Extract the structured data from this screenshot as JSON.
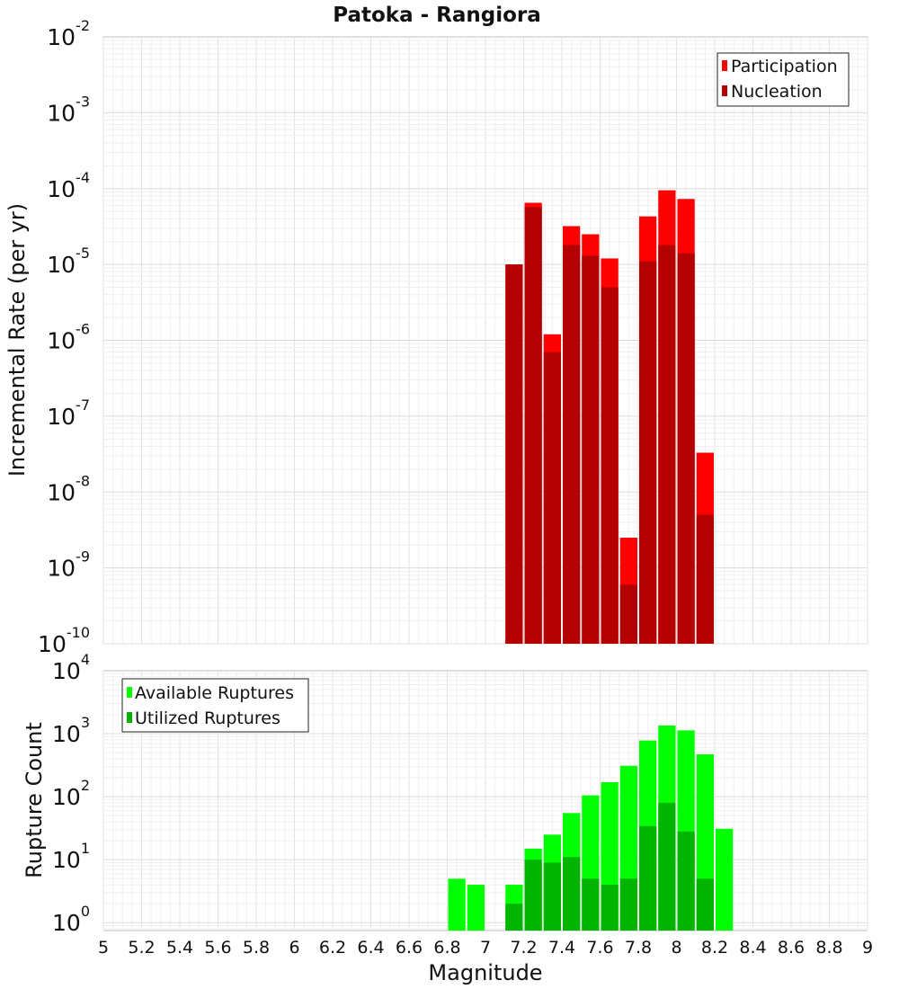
{
  "chart_data": [
    {
      "type": "bar",
      "title": "Patoka - Rangiora",
      "ylabel": "Incremental Rate (per yr)",
      "xlabel": "",
      "x_range": [
        5,
        9
      ],
      "y_scale": "log",
      "y_range": [
        1e-10,
        0.01
      ],
      "y_ticks": [
        {
          "base": "10",
          "exp": "-10"
        },
        {
          "base": "10",
          "exp": "-9"
        },
        {
          "base": "10",
          "exp": "-8"
        },
        {
          "base": "10",
          "exp": "-7"
        },
        {
          "base": "10",
          "exp": "-6"
        },
        {
          "base": "10",
          "exp": "-5"
        },
        {
          "base": "10",
          "exp": "-4"
        },
        {
          "base": "10",
          "exp": "-3"
        },
        {
          "base": "10",
          "exp": "-2"
        }
      ],
      "grid": true,
      "bar_width": 0.1,
      "legend_placement": "top-right",
      "x": [
        7.15,
        7.25,
        7.35,
        7.45,
        7.55,
        7.65,
        7.75,
        7.85,
        7.95,
        8.05,
        8.15
      ],
      "series": [
        {
          "name": "Participation",
          "color": "#ff0000",
          "values": [
            1e-05,
            6.5e-05,
            1.2e-06,
            3.2e-05,
            2.5e-05,
            1.2e-05,
            2.5e-09,
            4.3e-05,
            9.5e-05,
            7.3e-05,
            3.3e-08
          ]
        },
        {
          "name": "Nucleation",
          "color": "#b40000",
          "values": [
            1e-05,
            5.7e-05,
            7e-07,
            1.8e-05,
            1.3e-05,
            5e-06,
            6e-10,
            1.1e-05,
            1.8e-05,
            1.4e-05,
            5e-09
          ]
        }
      ]
    },
    {
      "type": "bar",
      "ylabel": "Rupture Count",
      "xlabel": "Magnitude",
      "x_range": [
        5,
        9
      ],
      "x_ticks": [
        "5",
        "5.2",
        "5.4",
        "5.6",
        "5.8",
        "6",
        "6.2",
        "6.4",
        "6.6",
        "6.8",
        "7",
        "7.2",
        "7.4",
        "7.6",
        "7.8",
        "8",
        "8.2",
        "8.4",
        "8.6",
        "8.8",
        "9"
      ],
      "y_scale": "log",
      "y_range": [
        0.75,
        10000.0
      ],
      "y_ticks": [
        {
          "value": 1,
          "base": "10",
          "exp": "0"
        },
        {
          "value": 10,
          "base": "10",
          "exp": "1"
        },
        {
          "value": 100,
          "base": "10",
          "exp": "2"
        },
        {
          "value": 1000,
          "base": "10",
          "exp": "3"
        },
        {
          "value": 10000,
          "base": "10",
          "exp": "4"
        }
      ],
      "grid": true,
      "bar_width": 0.1,
      "legend_placement": "top-left",
      "x": [
        6.85,
        6.95,
        7.05,
        7.15,
        7.25,
        7.35,
        7.45,
        7.55,
        7.65,
        7.75,
        7.85,
        7.95,
        8.05,
        8.15,
        8.25
      ],
      "series": [
        {
          "name": "Available Ruptures",
          "color": "#00ff00",
          "values": [
            5,
            4,
            0,
            4,
            15,
            25,
            55,
            105,
            170,
            310,
            780,
            1350,
            1130,
            470,
            31
          ]
        },
        {
          "name": "Utilized Ruptures",
          "color": "#00b400",
          "values": [
            0,
            0,
            0,
            2,
            10,
            9,
            11,
            5,
            4,
            5,
            34,
            80,
            28,
            5,
            0
          ]
        }
      ]
    }
  ]
}
